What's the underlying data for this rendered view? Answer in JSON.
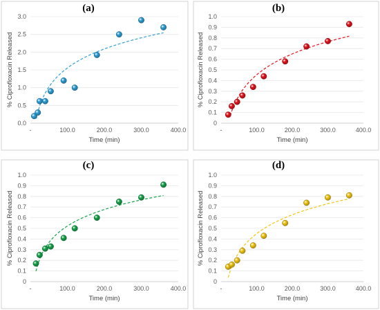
{
  "chart_data": [
    {
      "type": "scatter",
      "title": "(a)",
      "xlabel": "Time (min)",
      "ylabel": "% Ciprofloxacin Released",
      "xlim": [
        0,
        400
      ],
      "ylim": [
        0,
        3.0
      ],
      "x_ticks": [
        "-",
        "100.0",
        "200.0",
        "300.0",
        "400.0"
      ],
      "y_ticks": [
        "0.0",
        "0.5",
        "1.0",
        "1.5",
        "2.0",
        "2.5",
        "3.0"
      ],
      "color": "#2e9fd6",
      "grid": "horizontal",
      "trendline": "logarithmic",
      "x": [
        10,
        20,
        25,
        40,
        55,
        90,
        120,
        180,
        240,
        300,
        360
      ],
      "y": [
        0.2,
        0.3,
        0.62,
        0.62,
        0.9,
        1.2,
        1.0,
        1.92,
        2.5,
        2.9,
        2.7
      ]
    },
    {
      "type": "scatter",
      "title": "(b)",
      "xlabel": "Time (min)",
      "ylabel": "% Ciprofloxacin Released",
      "xlim": [
        0,
        400
      ],
      "ylim": [
        0,
        1.0
      ],
      "x_ticks": [
        "-",
        "100.0",
        "200.0",
        "300.0",
        "400.0"
      ],
      "y_ticks": [
        "0",
        "0.1",
        "0.2",
        "0.3",
        "0.4",
        "0.5",
        "0.6",
        "0.7",
        "0.8",
        "0.9",
        "1.0"
      ],
      "color": "#e3141c",
      "grid": "horizontal",
      "trendline": "logarithmic",
      "x": [
        20,
        30,
        45,
        60,
        90,
        120,
        180,
        240,
        300,
        360
      ],
      "y": [
        0.08,
        0.16,
        0.2,
        0.26,
        0.34,
        0.44,
        0.58,
        0.72,
        0.77,
        0.93
      ]
    },
    {
      "type": "scatter",
      "title": "(c)",
      "xlabel": "Time (min)",
      "ylabel": "% Ciprofloxacin Released",
      "xlim": [
        0,
        400
      ],
      "ylim": [
        0,
        1.0
      ],
      "x_ticks": [
        "-",
        "100.0",
        "200.0",
        "300.0",
        "400.0"
      ],
      "y_ticks": [
        "0",
        "0.1",
        "0.2",
        "0.3",
        "0.4",
        "0.5",
        "0.6",
        "0.7",
        "0.8",
        "0.9",
        "1.0"
      ],
      "color": "#16a34a",
      "grid": "horizontal",
      "trendline": "logarithmic",
      "x": [
        15,
        25,
        40,
        55,
        90,
        120,
        180,
        240,
        300,
        360
      ],
      "y": [
        0.17,
        0.25,
        0.31,
        0.33,
        0.41,
        0.5,
        0.6,
        0.75,
        0.79,
        0.91
      ]
    },
    {
      "type": "scatter",
      "title": "(d)",
      "xlabel": "Time (min)",
      "ylabel": "% Ciprofloxacin Released",
      "xlim": [
        0,
        400
      ],
      "ylim": [
        0,
        1.0
      ],
      "x_ticks": [
        "-",
        "100.0",
        "200.0",
        "300.0",
        "400.0"
      ],
      "y_ticks": [
        "0",
        "0.1",
        "0.2",
        "0.3",
        "0.4",
        "0.5",
        "0.6",
        "0.7",
        "0.8",
        "0.9",
        "1.0"
      ],
      "color": "#f2c30f",
      "grid": "horizontal",
      "trendline": "logarithmic",
      "x": [
        20,
        30,
        45,
        60,
        90,
        120,
        180,
        240,
        300,
        360
      ],
      "y": [
        0.14,
        0.16,
        0.2,
        0.29,
        0.34,
        0.43,
        0.55,
        0.74,
        0.79,
        0.81
      ]
    }
  ]
}
